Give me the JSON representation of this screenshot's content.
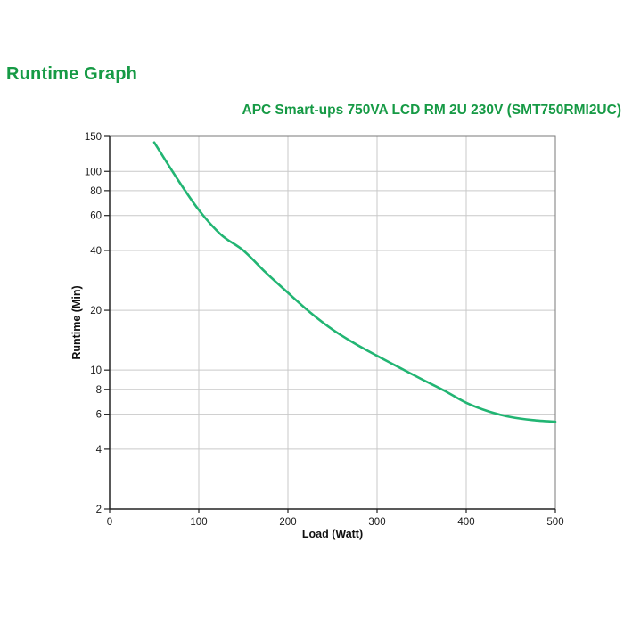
{
  "page": {
    "heading": "Runtime Graph"
  },
  "chart_data": {
    "type": "line",
    "title": "APC Smart-ups 750VA LCD RM 2U 230V (SMT750RMI2UC)",
    "xlabel": "Load (Watt)",
    "ylabel": "Runtime (Min)",
    "x_ticks": [
      0,
      100,
      200,
      300,
      400,
      500
    ],
    "y_ticks": [
      2,
      4,
      6,
      8,
      10,
      20,
      40,
      60,
      80,
      100,
      150
    ],
    "xlim": [
      0,
      500
    ],
    "ylim": [
      2,
      150
    ],
    "y_scale": "log",
    "grid": true,
    "legend": "none",
    "colors": {
      "curve": "#22b573",
      "title_green": "#169a45",
      "grid": "#c9c9c9",
      "border": "#7a7a7a",
      "axis": "#222222"
    },
    "series": [
      {
        "name": "Runtime",
        "x": [
          50,
          75,
          100,
          125,
          150,
          175,
          200,
          225,
          250,
          275,
          300,
          325,
          350,
          375,
          400,
          425,
          450,
          475,
          500
        ],
        "y": [
          140,
          93,
          64,
          48,
          40,
          31,
          24.5,
          19.5,
          16,
          13.6,
          11.8,
          10.3,
          9.0,
          7.9,
          6.85,
          6.2,
          5.8,
          5.6,
          5.5
        ]
      }
    ]
  }
}
